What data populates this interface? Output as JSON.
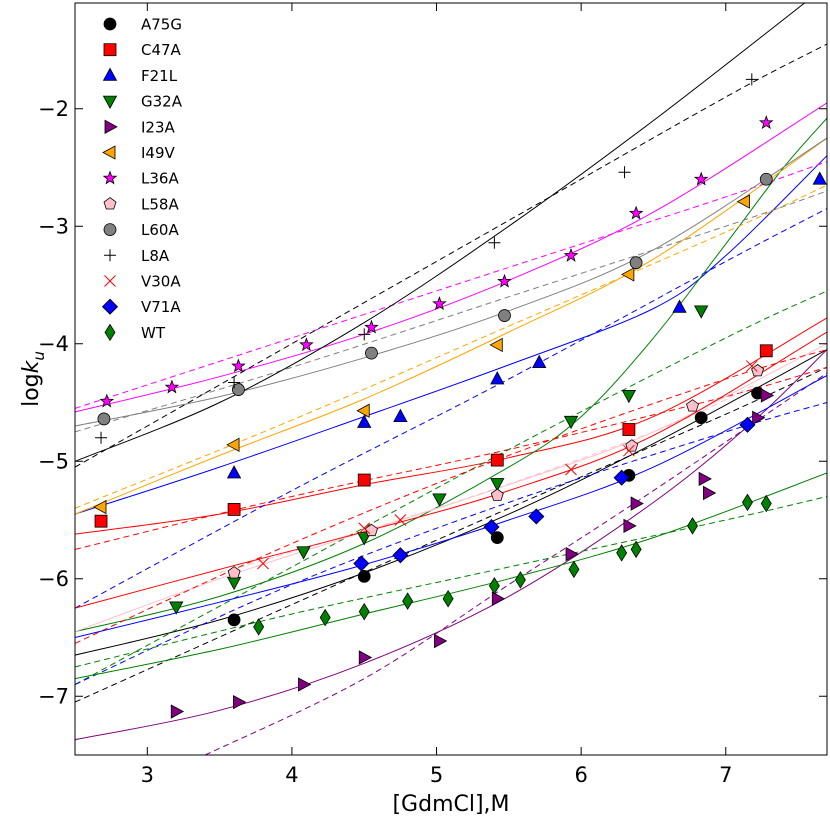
{
  "chart_data": {
    "type": "scatter",
    "title": "",
    "xlabel": "[GdmCl],M",
    "ylabel_main": "log",
    "ylabel_italic": "k",
    "ylabel_sub": "u",
    "xlim": [
      2.5,
      7.7
    ],
    "ylim": [
      -7.5,
      -1.1
    ],
    "xticks": [
      3,
      4,
      5,
      6,
      7
    ],
    "yticks": [
      -7,
      -6,
      -5,
      -4,
      -3,
      -2
    ],
    "xtick_labels": [
      "3",
      "4",
      "5",
      "6",
      "7"
    ],
    "ytick_labels": [
      "−7",
      "−6",
      "−5",
      "−4",
      "−3",
      "−2"
    ],
    "legend_position": "top-left",
    "series": [
      {
        "name": "A75G",
        "color": "#000000",
        "marker": "circle",
        "x": [
          3.6,
          4.5,
          5.42,
          6.33,
          6.83,
          7.22
        ],
        "y": [
          -6.35,
          -5.98,
          -5.65,
          -5.12,
          -4.63,
          -4.42
        ],
        "solid": [
          [
            2.5,
            -6.65
          ],
          [
            3.5,
            -6.35
          ],
          [
            4.5,
            -5.95
          ],
          [
            5.5,
            -5.45
          ],
          [
            6.5,
            -4.85
          ],
          [
            7.7,
            -4.05
          ]
        ],
        "dashed": [
          [
            2.5,
            -7.05
          ],
          [
            4.0,
            -6.22
          ],
          [
            5.5,
            -5.4
          ],
          [
            7.0,
            -4.6
          ],
          [
            7.7,
            -4.2
          ]
        ]
      },
      {
        "name": "C47A",
        "color": "#ff0000",
        "marker": "square",
        "x": [
          2.68,
          3.6,
          4.5,
          5.42,
          6.33,
          7.28
        ],
        "y": [
          -5.51,
          -5.41,
          -5.16,
          -4.99,
          -4.73,
          -4.06
        ],
        "solid": [
          [
            2.5,
            -5.62
          ],
          [
            3.5,
            -5.45
          ],
          [
            4.5,
            -5.2
          ],
          [
            5.5,
            -4.97
          ],
          [
            6.5,
            -4.62
          ],
          [
            7.7,
            -3.78
          ]
        ],
        "dashed": [
          [
            2.5,
            -5.75
          ],
          [
            4.0,
            -5.3
          ],
          [
            5.5,
            -4.9
          ],
          [
            7.0,
            -4.45
          ],
          [
            7.7,
            -4.2
          ]
        ]
      },
      {
        "name": "F21L",
        "color": "#0000ff",
        "marker": "triangle-up",
        "x": [
          3.6,
          4.5,
          4.75,
          5.42,
          5.71,
          6.68,
          7.65
        ],
        "y": [
          -5.1,
          -4.67,
          -4.62,
          -4.3,
          -4.16,
          -3.69,
          -2.6
        ],
        "solid": [
          [
            2.5,
            -5.45
          ],
          [
            3.5,
            -5.05
          ],
          [
            4.5,
            -4.62
          ],
          [
            5.5,
            -4.18
          ],
          [
            6.5,
            -3.7
          ],
          [
            7.0,
            -3.25
          ],
          [
            7.7,
            -2.4
          ]
        ],
        "dashed": [
          [
            2.5,
            -6.25
          ],
          [
            4.0,
            -5.25
          ],
          [
            5.5,
            -4.3
          ],
          [
            7.0,
            -3.3
          ],
          [
            7.7,
            -2.85
          ]
        ]
      },
      {
        "name": "G32A",
        "color": "#008000",
        "marker": "triangle-down",
        "x": [
          3.2,
          3.6,
          4.08,
          4.5,
          5.02,
          5.42,
          5.93,
          6.33,
          6.83
        ],
        "y": [
          -6.24,
          -6.03,
          -5.77,
          -5.65,
          -5.32,
          -5.19,
          -4.66,
          -4.44,
          -3.72
        ],
        "solid": [
          [
            2.5,
            -6.45
          ],
          [
            3.5,
            -6.15
          ],
          [
            4.5,
            -5.7
          ],
          [
            5.5,
            -5.05
          ],
          [
            6.0,
            -4.62
          ],
          [
            6.5,
            -3.95
          ],
          [
            7.0,
            -3.15
          ],
          [
            7.4,
            -2.5
          ],
          [
            7.7,
            -2.08
          ]
        ],
        "dashed": [
          [
            2.5,
            -6.9
          ],
          [
            4.0,
            -5.9
          ],
          [
            5.5,
            -4.9
          ],
          [
            7.0,
            -3.95
          ],
          [
            7.7,
            -3.55
          ]
        ]
      },
      {
        "name": "I23A",
        "color": "#800080",
        "marker": "triangle-right",
        "x": [
          3.2,
          3.63,
          4.08,
          4.5,
          5.02,
          5.42,
          5.93,
          6.33,
          6.38,
          6.85,
          6.88,
          7.22,
          7.28
        ],
        "y": [
          -7.13,
          -7.05,
          -6.9,
          -6.67,
          -6.53,
          -6.17,
          -5.79,
          -5.55,
          -5.36,
          -5.15,
          -5.27,
          -4.63,
          -4.44
        ],
        "solid": [
          [
            2.5,
            -7.37
          ],
          [
            3.5,
            -7.12
          ],
          [
            4.5,
            -6.72
          ],
          [
            5.5,
            -6.15
          ],
          [
            6.5,
            -5.35
          ],
          [
            7.2,
            -4.65
          ],
          [
            7.7,
            -4.05
          ]
        ],
        "dashed": [
          [
            3.4,
            -7.5
          ],
          [
            4.5,
            -6.85
          ],
          [
            5.5,
            -6.05
          ],
          [
            6.5,
            -5.25
          ],
          [
            7.7,
            -4.25
          ]
        ]
      },
      {
        "name": "I49V",
        "color": "#ffa500",
        "marker": "triangle-left",
        "x": [
          2.68,
          3.6,
          4.5,
          5.42,
          6.33,
          7.13
        ],
        "y": [
          -5.39,
          -4.86,
          -4.57,
          -4.01,
          -3.41,
          -2.79
        ],
        "solid": [
          [
            2.5,
            -5.45
          ],
          [
            3.5,
            -4.95
          ],
          [
            4.5,
            -4.47
          ],
          [
            5.5,
            -3.9
          ],
          [
            6.5,
            -3.28
          ],
          [
            7.7,
            -2.25
          ]
        ],
        "dashed": [
          [
            2.5,
            -5.4
          ],
          [
            4.0,
            -4.65
          ],
          [
            5.5,
            -3.85
          ],
          [
            7.0,
            -3.05
          ],
          [
            7.7,
            -2.65
          ]
        ]
      },
      {
        "name": "L36A",
        "color": "#ff00ff",
        "marker": "star",
        "x": [
          2.72,
          3.17,
          3.63,
          4.1,
          4.55,
          5.02,
          5.47,
          5.93,
          6.38,
          6.83,
          7.28
        ],
        "y": [
          -4.49,
          -4.37,
          -4.19,
          -4.01,
          -3.86,
          -3.66,
          -3.47,
          -3.25,
          -2.89,
          -2.6,
          -2.12
        ],
        "solid": [
          [
            2.5,
            -4.58
          ],
          [
            3.5,
            -4.28
          ],
          [
            4.5,
            -3.92
          ],
          [
            5.5,
            -3.46
          ],
          [
            6.5,
            -2.88
          ],
          [
            7.7,
            -1.95
          ]
        ],
        "dashed": [
          [
            2.5,
            -4.55
          ],
          [
            4.0,
            -3.95
          ],
          [
            5.5,
            -3.35
          ],
          [
            7.0,
            -2.75
          ],
          [
            7.7,
            -2.45
          ]
        ]
      },
      {
        "name": "L58A",
        "color": "#ffc0cb",
        "marker": "pentagon",
        "x": [
          3.6,
          4.55,
          5.42,
          6.35,
          6.77,
          7.22
        ],
        "y": [
          -5.95,
          -5.59,
          -5.29,
          -4.87,
          -4.53,
          -4.23
        ],
        "solid": [
          [
            2.5,
            -6.45
          ],
          [
            3.5,
            -6.0
          ],
          [
            4.5,
            -5.6
          ],
          [
            5.5,
            -5.2
          ],
          [
            6.5,
            -4.75
          ],
          [
            7.7,
            -4.0
          ]
        ],
        "dashed": [
          [
            3.5,
            -5.95
          ],
          [
            5.0,
            -5.4
          ],
          [
            6.5,
            -4.75
          ],
          [
            7.2,
            -4.35
          ]
        ]
      },
      {
        "name": "L60A",
        "color": "#808080",
        "marker": "circle",
        "x": [
          2.7,
          3.63,
          4.55,
          5.47,
          6.38,
          7.28
        ],
        "y": [
          -4.64,
          -4.39,
          -4.08,
          -3.76,
          -3.31,
          -2.6
        ],
        "solid": [
          [
            2.5,
            -4.7
          ],
          [
            3.5,
            -4.45
          ],
          [
            4.5,
            -4.12
          ],
          [
            5.5,
            -3.72
          ],
          [
            6.5,
            -3.2
          ],
          [
            7.7,
            -2.25
          ]
        ],
        "dashed": [
          [
            2.5,
            -4.75
          ],
          [
            4.0,
            -4.2
          ],
          [
            5.5,
            -3.6
          ],
          [
            7.0,
            -3.0
          ],
          [
            7.7,
            -2.7
          ]
        ]
      },
      {
        "name": "L8A",
        "color": "#000000",
        "marker": "plus",
        "x": [
          2.68,
          3.6,
          4.5,
          5.4,
          6.3,
          7.18
        ],
        "y": [
          -4.8,
          -4.33,
          -3.92,
          -3.14,
          -2.54,
          -1.75
        ],
        "solid": [
          [
            2.5,
            -5.0
          ],
          [
            3.5,
            -4.5
          ],
          [
            4.5,
            -3.82
          ],
          [
            5.5,
            -3.0
          ],
          [
            6.5,
            -2.1
          ],
          [
            7.7,
            -0.95
          ]
        ],
        "dashed": [
          [
            2.5,
            -5.05
          ],
          [
            4.0,
            -4.0
          ],
          [
            5.5,
            -2.95
          ],
          [
            7.0,
            -1.9
          ],
          [
            7.7,
            -1.45
          ]
        ]
      },
      {
        "name": "V30A",
        "color": "#ff0000",
        "marker": "x",
        "x": [
          3.8,
          4.5,
          4.75,
          5.93,
          6.33,
          7.18
        ],
        "y": [
          -5.87,
          -5.57,
          -5.5,
          -5.07,
          -4.91,
          -4.19
        ],
        "solid": [
          [
            2.5,
            -6.25
          ],
          [
            3.5,
            -5.92
          ],
          [
            4.5,
            -5.6
          ],
          [
            5.5,
            -5.25
          ],
          [
            6.5,
            -4.78
          ],
          [
            7.7,
            -3.9
          ]
        ],
        "dashed": [
          [
            2.5,
            -6.55
          ],
          [
            4.0,
            -5.7
          ],
          [
            5.5,
            -4.95
          ],
          [
            7.0,
            -4.3
          ],
          [
            7.7,
            -4.05
          ]
        ]
      },
      {
        "name": "V71A",
        "color": "#0000ff",
        "marker": "diamond",
        "x": [
          4.48,
          4.75,
          5.38,
          5.69,
          6.28,
          7.15
        ],
        "y": [
          -5.87,
          -5.8,
          -5.56,
          -5.47,
          -5.14,
          -4.69
        ],
        "solid": [
          [
            2.5,
            -6.5
          ],
          [
            3.5,
            -6.2
          ],
          [
            4.5,
            -5.88
          ],
          [
            5.5,
            -5.5
          ],
          [
            6.5,
            -5.05
          ],
          [
            7.7,
            -4.27
          ]
        ],
        "dashed": [
          [
            2.5,
            -6.9
          ],
          [
            4.0,
            -6.05
          ],
          [
            5.5,
            -5.35
          ],
          [
            7.0,
            -4.75
          ],
          [
            7.7,
            -4.5
          ]
        ]
      },
      {
        "name": "WT",
        "color": "#008000",
        "marker": "thin-diamond",
        "x": [
          3.77,
          4.23,
          4.5,
          4.8,
          5.08,
          5.4,
          5.58,
          5.95,
          6.28,
          6.38,
          6.77,
          7.15,
          7.28
        ],
        "y": [
          -6.41,
          -6.33,
          -6.28,
          -6.19,
          -6.17,
          -6.06,
          -6.01,
          -5.92,
          -5.78,
          -5.75,
          -5.55,
          -5.35,
          -5.36
        ],
        "solid": [
          [
            2.5,
            -6.85
          ],
          [
            3.5,
            -6.6
          ],
          [
            4.5,
            -6.3
          ],
          [
            5.5,
            -6.0
          ],
          [
            6.5,
            -5.65
          ],
          [
            7.7,
            -5.1
          ]
        ],
        "dashed": [
          [
            2.5,
            -6.75
          ],
          [
            4.0,
            -6.3
          ],
          [
            5.5,
            -5.9
          ],
          [
            7.0,
            -5.5
          ],
          [
            7.7,
            -5.3
          ]
        ]
      }
    ]
  }
}
